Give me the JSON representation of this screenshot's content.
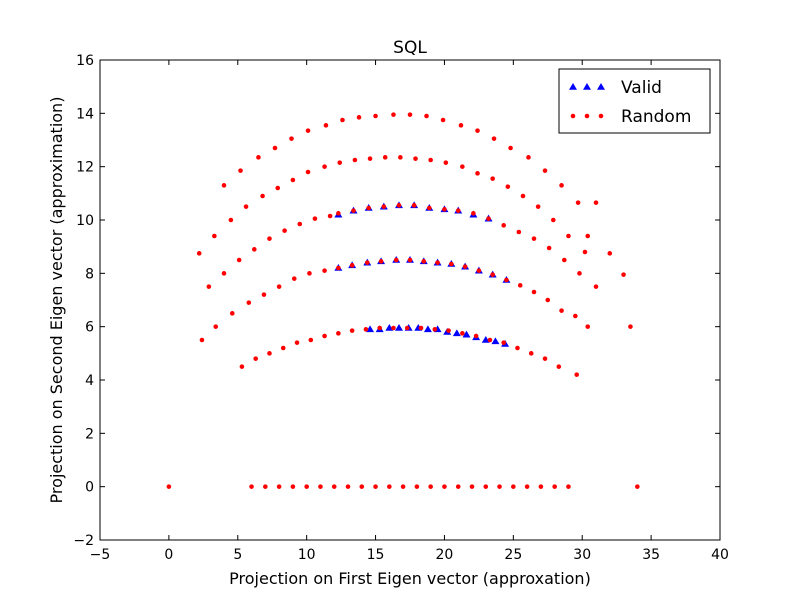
{
  "chart_data": {
    "type": "scatter",
    "title": "SQL",
    "xlabel": "Projection on First Eigen vector (approxation)",
    "ylabel": "Projection on Second Eigen vector (approximation)",
    "xlim": [
      -5,
      40
    ],
    "ylim": [
      -2,
      16
    ],
    "xticks": [
      -5,
      0,
      5,
      10,
      15,
      20,
      25,
      30,
      35,
      40
    ],
    "yticks": [
      -2,
      0,
      2,
      4,
      6,
      8,
      10,
      12,
      14,
      16
    ],
    "grid": false,
    "legend_position": "top-right",
    "series": [
      {
        "name": "Valid",
        "marker": "triangle",
        "color": "#0000ff",
        "points": [
          [
            14.6,
            5.9
          ],
          [
            15.3,
            5.9
          ],
          [
            16.0,
            5.95
          ],
          [
            16.7,
            5.95
          ],
          [
            17.4,
            5.95
          ],
          [
            18.1,
            5.95
          ],
          [
            18.8,
            5.9
          ],
          [
            19.5,
            5.9
          ],
          [
            20.2,
            5.8
          ],
          [
            20.9,
            5.75
          ],
          [
            21.6,
            5.7
          ],
          [
            22.3,
            5.6
          ],
          [
            23.0,
            5.5
          ],
          [
            23.7,
            5.45
          ],
          [
            24.4,
            5.35
          ],
          [
            12.3,
            8.2
          ],
          [
            13.3,
            8.3
          ],
          [
            14.4,
            8.4
          ],
          [
            15.4,
            8.45
          ],
          [
            16.5,
            8.5
          ],
          [
            17.5,
            8.5
          ],
          [
            18.5,
            8.45
          ],
          [
            19.5,
            8.4
          ],
          [
            20.5,
            8.35
          ],
          [
            21.5,
            8.25
          ],
          [
            22.5,
            8.1
          ],
          [
            23.5,
            7.95
          ],
          [
            24.5,
            7.75
          ],
          [
            12.3,
            10.2
          ],
          [
            13.4,
            10.35
          ],
          [
            14.5,
            10.45
          ],
          [
            15.6,
            10.5
          ],
          [
            16.7,
            10.55
          ],
          [
            17.8,
            10.55
          ],
          [
            18.9,
            10.45
          ],
          [
            20.0,
            10.4
          ],
          [
            21.0,
            10.35
          ],
          [
            22.1,
            10.2
          ],
          [
            23.2,
            10.05
          ]
        ]
      },
      {
        "name": "Random",
        "marker": "circle",
        "color": "#ff0000",
        "points": [
          [
            0,
            0
          ],
          [
            6,
            0
          ],
          [
            7,
            0
          ],
          [
            8,
            0
          ],
          [
            9,
            0
          ],
          [
            10,
            0
          ],
          [
            11,
            0
          ],
          [
            12,
            0
          ],
          [
            13,
            0
          ],
          [
            14,
            0
          ],
          [
            15,
            0
          ],
          [
            16,
            0
          ],
          [
            17,
            0
          ],
          [
            18,
            0
          ],
          [
            19,
            0
          ],
          [
            20,
            0
          ],
          [
            21,
            0
          ],
          [
            22,
            0
          ],
          [
            23,
            0
          ],
          [
            24,
            0
          ],
          [
            25,
            0
          ],
          [
            26,
            0
          ],
          [
            27,
            0
          ],
          [
            28,
            0
          ],
          [
            29,
            0
          ],
          [
            34,
            0
          ],
          [
            5.3,
            4.5
          ],
          [
            6.3,
            4.8
          ],
          [
            7.3,
            5.0
          ],
          [
            8.3,
            5.2
          ],
          [
            9.3,
            5.4
          ],
          [
            10.3,
            5.5
          ],
          [
            11.3,
            5.65
          ],
          [
            12.3,
            5.75
          ],
          [
            13.3,
            5.85
          ],
          [
            14.3,
            5.9
          ],
          [
            15.3,
            5.95
          ],
          [
            16.3,
            5.95
          ],
          [
            17.3,
            5.95
          ],
          [
            18.3,
            5.95
          ],
          [
            19.3,
            5.9
          ],
          [
            20.3,
            5.85
          ],
          [
            21.3,
            5.75
          ],
          [
            22.3,
            5.65
          ],
          [
            23.3,
            5.5
          ],
          [
            24.3,
            5.4
          ],
          [
            25.3,
            5.2
          ],
          [
            26.3,
            5.0
          ],
          [
            27.3,
            4.8
          ],
          [
            28.3,
            4.5
          ],
          [
            29.6,
            4.2
          ],
          [
            2.4,
            5.5
          ],
          [
            3.4,
            6.0
          ],
          [
            4.6,
            6.5
          ],
          [
            5.8,
            6.9
          ],
          [
            6.9,
            7.2
          ],
          [
            8.0,
            7.5
          ],
          [
            9.1,
            7.8
          ],
          [
            10.2,
            8.0
          ],
          [
            11.3,
            8.1
          ],
          [
            12.3,
            8.2
          ],
          [
            13.3,
            8.3
          ],
          [
            14.4,
            8.4
          ],
          [
            15.4,
            8.45
          ],
          [
            16.5,
            8.5
          ],
          [
            17.5,
            8.5
          ],
          [
            18.5,
            8.45
          ],
          [
            19.5,
            8.4
          ],
          [
            20.5,
            8.35
          ],
          [
            21.5,
            8.25
          ],
          [
            22.5,
            8.1
          ],
          [
            23.5,
            7.95
          ],
          [
            24.5,
            7.75
          ],
          [
            25.5,
            7.55
          ],
          [
            26.5,
            7.3
          ],
          [
            27.5,
            7.0
          ],
          [
            28.5,
            6.6
          ],
          [
            29.5,
            6.4
          ],
          [
            30.4,
            6.0
          ],
          [
            33.5,
            6.0
          ],
          [
            2.2,
            8.75
          ],
          [
            2.9,
            7.5
          ],
          [
            4.0,
            8.0
          ],
          [
            5.1,
            8.5
          ],
          [
            6.2,
            8.9
          ],
          [
            7.3,
            9.3
          ],
          [
            8.4,
            9.6
          ],
          [
            9.5,
            9.85
          ],
          [
            10.6,
            10.05
          ],
          [
            11.7,
            10.15
          ],
          [
            12.3,
            10.25
          ],
          [
            13.4,
            10.35
          ],
          [
            14.5,
            10.45
          ],
          [
            15.6,
            10.5
          ],
          [
            16.7,
            10.55
          ],
          [
            17.8,
            10.55
          ],
          [
            18.9,
            10.45
          ],
          [
            20.0,
            10.4
          ],
          [
            21.0,
            10.35
          ],
          [
            22.1,
            10.25
          ],
          [
            23.2,
            10.05
          ],
          [
            24.3,
            9.8
          ],
          [
            25.4,
            9.55
          ],
          [
            26.5,
            9.3
          ],
          [
            27.6,
            8.95
          ],
          [
            28.7,
            8.5
          ],
          [
            29.8,
            8.0
          ],
          [
            31.0,
            7.5
          ],
          [
            32.0,
            8.75
          ],
          [
            33.0,
            7.95
          ],
          [
            3.3,
            9.4
          ],
          [
            4.5,
            10.0
          ],
          [
            5.6,
            10.5
          ],
          [
            6.8,
            10.9
          ],
          [
            7.9,
            11.2
          ],
          [
            9.0,
            11.5
          ],
          [
            10.1,
            11.8
          ],
          [
            11.3,
            12.0
          ],
          [
            12.4,
            12.15
          ],
          [
            13.5,
            12.25
          ],
          [
            14.6,
            12.3
          ],
          [
            15.7,
            12.35
          ],
          [
            16.8,
            12.35
          ],
          [
            17.9,
            12.3
          ],
          [
            19.0,
            12.25
          ],
          [
            20.1,
            12.15
          ],
          [
            21.3,
            12.0
          ],
          [
            22.4,
            11.75
          ],
          [
            23.5,
            11.55
          ],
          [
            24.6,
            11.25
          ],
          [
            25.7,
            10.9
          ],
          [
            26.8,
            10.5
          ],
          [
            27.9,
            10.0
          ],
          [
            29.0,
            9.4
          ],
          [
            30.2,
            8.8
          ],
          [
            31.0,
            10.65
          ],
          [
            4.0,
            11.3
          ],
          [
            5.2,
            11.85
          ],
          [
            6.5,
            12.35
          ],
          [
            7.7,
            12.7
          ],
          [
            8.9,
            13.05
          ],
          [
            10.1,
            13.35
          ],
          [
            11.4,
            13.55
          ],
          [
            12.6,
            13.75
          ],
          [
            13.8,
            13.85
          ],
          [
            15.0,
            13.9
          ],
          [
            16.3,
            13.95
          ],
          [
            17.5,
            13.95
          ],
          [
            18.7,
            13.9
          ],
          [
            19.9,
            13.75
          ],
          [
            21.2,
            13.55
          ],
          [
            22.4,
            13.35
          ],
          [
            23.6,
            13.05
          ],
          [
            24.8,
            12.7
          ],
          [
            26.1,
            12.35
          ],
          [
            27.3,
            11.85
          ],
          [
            28.5,
            11.3
          ],
          [
            29.7,
            10.65
          ],
          [
            30.4,
            9.4
          ]
        ]
      }
    ]
  }
}
